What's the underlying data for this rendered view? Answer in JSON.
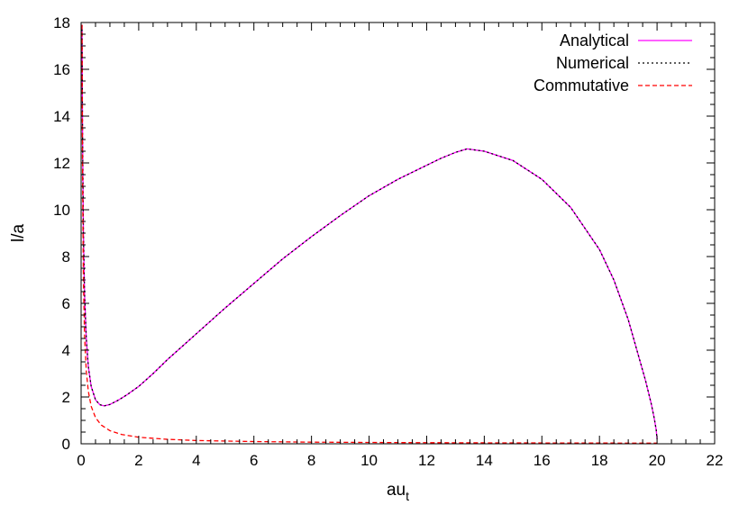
{
  "chart_data": {
    "type": "line",
    "xlabel": "au",
    "xlabel_sub": "t",
    "ylabel": "l/a",
    "xlim": [
      0,
      22
    ],
    "ylim": [
      0,
      18
    ],
    "xticks": [
      0,
      2,
      4,
      6,
      8,
      10,
      12,
      14,
      16,
      18,
      20,
      22
    ],
    "yticks": [
      0,
      2,
      4,
      6,
      8,
      10,
      12,
      14,
      16,
      18
    ],
    "grid": false,
    "legend_position": "top-right",
    "series": [
      {
        "name": "Analytical",
        "color": "#ff00ff",
        "style": "solid",
        "x": [
          0.03,
          0.05,
          0.08,
          0.12,
          0.18,
          0.25,
          0.35,
          0.5,
          0.65,
          0.8,
          1.0,
          1.3,
          1.6,
          2.0,
          2.5,
          3.0,
          3.5,
          4.0,
          5.0,
          6.0,
          7.0,
          8.0,
          9.0,
          10.0,
          11.0,
          12.0,
          12.5,
          13.0,
          13.4,
          14.0,
          15.0,
          16.0,
          17.0,
          18.0,
          18.5,
          19.0,
          19.3,
          19.6,
          19.8,
          19.9,
          19.97,
          20.0
        ],
        "y": [
          17.9,
          13.2,
          9.0,
          6.4,
          4.5,
          3.3,
          2.45,
          1.88,
          1.67,
          1.62,
          1.68,
          1.87,
          2.1,
          2.45,
          3.0,
          3.6,
          4.15,
          4.7,
          5.8,
          6.85,
          7.9,
          8.85,
          9.75,
          10.6,
          11.3,
          11.9,
          12.2,
          12.45,
          12.6,
          12.5,
          12.1,
          11.3,
          10.1,
          8.3,
          7.0,
          5.3,
          4.0,
          2.7,
          1.7,
          1.1,
          0.6,
          0.2
        ]
      },
      {
        "name": "Numerical",
        "color": "#000000",
        "style": "dotted",
        "x": [
          0.03,
          0.05,
          0.08,
          0.12,
          0.18,
          0.25,
          0.35,
          0.5,
          0.65,
          0.8,
          1.0,
          1.3,
          1.6,
          2.0,
          2.5,
          3.0,
          3.5,
          4.0,
          5.0,
          6.0,
          7.0,
          8.0,
          9.0,
          10.0,
          11.0,
          12.0,
          12.5,
          13.0,
          13.4,
          14.0,
          15.0,
          16.0,
          17.0,
          18.0,
          18.5,
          19.0,
          19.3,
          19.6,
          19.8,
          19.9,
          19.97,
          20.0
        ],
        "y": [
          17.9,
          13.2,
          9.0,
          6.4,
          4.5,
          3.3,
          2.45,
          1.88,
          1.67,
          1.62,
          1.68,
          1.87,
          2.1,
          2.45,
          3.0,
          3.6,
          4.15,
          4.7,
          5.8,
          6.85,
          7.9,
          8.85,
          9.75,
          10.6,
          11.3,
          11.9,
          12.2,
          12.45,
          12.6,
          12.5,
          12.1,
          11.3,
          10.1,
          8.3,
          7.0,
          5.3,
          4.0,
          2.7,
          1.7,
          1.1,
          0.6,
          0.2
        ]
      },
      {
        "name": "Commutative",
        "color": "#ff0000",
        "style": "dashed",
        "x": [
          0.03,
          0.05,
          0.08,
          0.12,
          0.18,
          0.25,
          0.35,
          0.5,
          0.7,
          1.0,
          1.4,
          2.0,
          3.0,
          4.0,
          6.0,
          8.0,
          10.0,
          12.0,
          14.0,
          16.0,
          18.0,
          20.0
        ],
        "y": [
          17.9,
          11.5,
          7.0,
          4.6,
          3.1,
          2.25,
          1.6,
          1.12,
          0.8,
          0.56,
          0.4,
          0.28,
          0.19,
          0.14,
          0.095,
          0.07,
          0.057,
          0.047,
          0.04,
          0.035,
          0.031,
          0.028
        ]
      }
    ]
  }
}
